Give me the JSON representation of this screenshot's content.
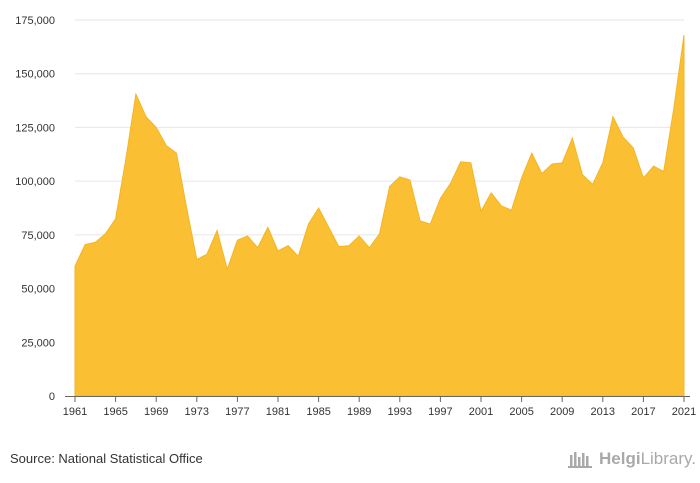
{
  "chart_data": {
    "type": "area",
    "x": [
      1961,
      1962,
      1963,
      1964,
      1965,
      1966,
      1967,
      1968,
      1969,
      1970,
      1971,
      1972,
      1973,
      1974,
      1975,
      1976,
      1977,
      1978,
      1979,
      1980,
      1981,
      1982,
      1983,
      1984,
      1985,
      1986,
      1987,
      1988,
      1989,
      1990,
      1991,
      1992,
      1993,
      1994,
      1995,
      1996,
      1997,
      1998,
      1999,
      2000,
      2001,
      2002,
      2003,
      2004,
      2005,
      2006,
      2007,
      2008,
      2009,
      2010,
      2011,
      2012,
      2013,
      2014,
      2015,
      2016,
      2017,
      2018,
      2019,
      2020,
      2021
    ],
    "series": [
      {
        "values": [
          60500,
          70500,
          71500,
          75500,
          82500,
          110000,
          140500,
          130000,
          125000,
          116500,
          113000,
          87500,
          63500,
          66000,
          77000,
          59000,
          72500,
          74500,
          69000,
          78500,
          67500,
          70000,
          65000,
          80000,
          87500,
          78500,
          69500,
          70000,
          74500,
          69000,
          75500,
          97500,
          102000,
          100500,
          81500,
          80000,
          92000,
          99000,
          109000,
          108500,
          86000,
          94500,
          88500,
          86500,
          101500,
          113000,
          103500,
          108000,
          108500,
          120000,
          103000,
          98500,
          108500,
          130000,
          120500,
          115500,
          101500,
          107000,
          104500,
          134000,
          168000
        ]
      }
    ],
    "xticks": [
      "1961",
      "1965",
      "1969",
      "1973",
      "1977",
      "1981",
      "1985",
      "1989",
      "1993",
      "1997",
      "2001",
      "2005",
      "2009",
      "2013",
      "2017",
      "2021"
    ],
    "yticks": [
      "0",
      "25,000",
      "50,000",
      "75,000",
      "100,000",
      "125,000",
      "150,000",
      "175,000"
    ],
    "xlim": [
      1961,
      2021
    ],
    "ylim": [
      0,
      175000
    ],
    "grid": "horizontal",
    "legend": "none",
    "fill_color": "#FBBF33",
    "edge_color": "#F4B524",
    "source_text": "Source: National Statistical Office"
  },
  "branding": {
    "logo_icon": "helgi-library-logo",
    "logo_text_bold": "Helgi",
    "logo_text_rest": "Library."
  }
}
